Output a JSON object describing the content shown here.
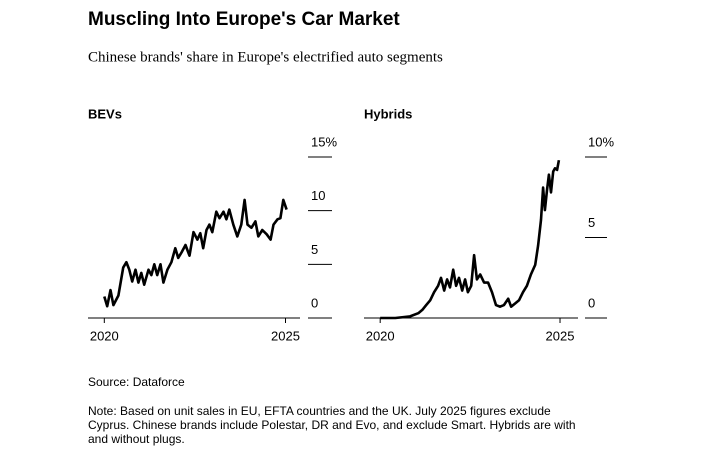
{
  "header": {
    "title": "Muscling Into Europe's Car Market",
    "subtitle": "Chinese brands' share in Europe's electrified auto segments"
  },
  "footer": {
    "source": "Source: Dataforce",
    "note": [
      "Note: Based on unit sales in EU, EFTA countries and the UK. July 2025 figures exclude",
      "Cyprus. Chinese brands include Polestar, DR and Evo, and exclude Smart. Hybrids are with",
      "and without plugs."
    ]
  },
  "chart_data": [
    {
      "type": "line",
      "title": "BEVs",
      "color": "#000000",
      "x": [
        2020.0,
        2020.08,
        2020.17,
        2020.25,
        2020.39,
        2020.52,
        2020.61,
        2020.69,
        2020.77,
        2020.86,
        2020.94,
        2021.02,
        2021.1,
        2021.22,
        2021.3,
        2021.38,
        2021.46,
        2021.55,
        2021.63,
        2021.74,
        2021.85,
        2021.96,
        2022.04,
        2022.13,
        2022.24,
        2022.35,
        2022.46,
        2022.57,
        2022.65,
        2022.73,
        2022.82,
        2022.9,
        2022.98,
        2023.09,
        2023.18,
        2023.29,
        2023.37,
        2023.45,
        2023.56,
        2023.67,
        2023.78,
        2023.87,
        2023.95,
        2024.06,
        2024.17,
        2024.25,
        2024.36,
        2024.48,
        2024.59,
        2024.67,
        2024.78,
        2024.86,
        2024.94,
        2025.03
      ],
      "series": [
        {
          "name": null,
          "color": "#000000",
          "values": [
            2.0,
            1.1,
            2.6,
            1.2,
            2.1,
            4.7,
            5.2,
            4.5,
            3.4,
            4.5,
            3.3,
            4.2,
            3.1,
            4.5,
            4.0,
            5.0,
            4.0,
            5.0,
            3.3,
            4.5,
            5.2,
            6.5,
            5.6,
            6.1,
            6.8,
            5.8,
            8.0,
            7.3,
            7.9,
            6.5,
            8.2,
            8.7,
            8.0,
            9.9,
            9.3,
            9.9,
            9.2,
            10.1,
            8.7,
            7.6,
            8.7,
            11.0,
            8.7,
            8.4,
            9.0,
            7.6,
            8.2,
            7.8,
            7.3,
            8.7,
            9.2,
            9.3,
            11.0,
            10.1
          ]
        }
      ],
      "xlim": [
        2019.55,
        2025.4
      ],
      "xticks": [
        2020,
        2025
      ],
      "ylim": [
        0,
        15
      ],
      "yticks": [
        0,
        5,
        10,
        {
          "value": 15,
          "label": "15%"
        }
      ]
    },
    {
      "type": "line",
      "title": "Hybrids",
      "color": "#000000",
      "x": [
        2020.0,
        2020.42,
        2020.83,
        2021.06,
        2021.17,
        2021.28,
        2021.39,
        2021.5,
        2021.61,
        2021.69,
        2021.78,
        2021.86,
        2021.94,
        2022.03,
        2022.11,
        2022.19,
        2022.28,
        2022.36,
        2022.44,
        2022.53,
        2022.61,
        2022.69,
        2022.78,
        2022.89,
        2023.0,
        2023.11,
        2023.22,
        2023.33,
        2023.44,
        2023.56,
        2023.64,
        2023.75,
        2023.86,
        2023.97,
        2024.08,
        2024.19,
        2024.31,
        2024.39,
        2024.47,
        2024.53,
        2024.58,
        2024.64,
        2024.69,
        2024.75,
        2024.81,
        2024.86,
        2024.92,
        2024.97
      ],
      "series": [
        {
          "name": null,
          "color": "#000000",
          "values": [
            0,
            0,
            0.1,
            0.3,
            0.5,
            0.8,
            1.1,
            1.6,
            2.0,
            2.5,
            1.7,
            2.4,
            1.9,
            3.0,
            2.0,
            2.5,
            1.7,
            2.4,
            1.6,
            2.0,
            3.9,
            2.4,
            2.7,
            2.2,
            2.2,
            1.6,
            0.8,
            0.7,
            0.8,
            1.2,
            0.7,
            0.9,
            1.1,
            1.6,
            2.0,
            2.7,
            3.3,
            4.5,
            6.1,
            8.1,
            6.7,
            8.0,
            8.9,
            7.8,
            9.1,
            9.3,
            9.2,
            9.8
          ]
        }
      ],
      "xlim": [
        2019.55,
        2025.5
      ],
      "xticks": [
        2020,
        2025
      ],
      "ylim": [
        0,
        10
      ],
      "yticks": [
        0,
        5,
        {
          "value": 10,
          "label": "10%"
        }
      ]
    }
  ]
}
